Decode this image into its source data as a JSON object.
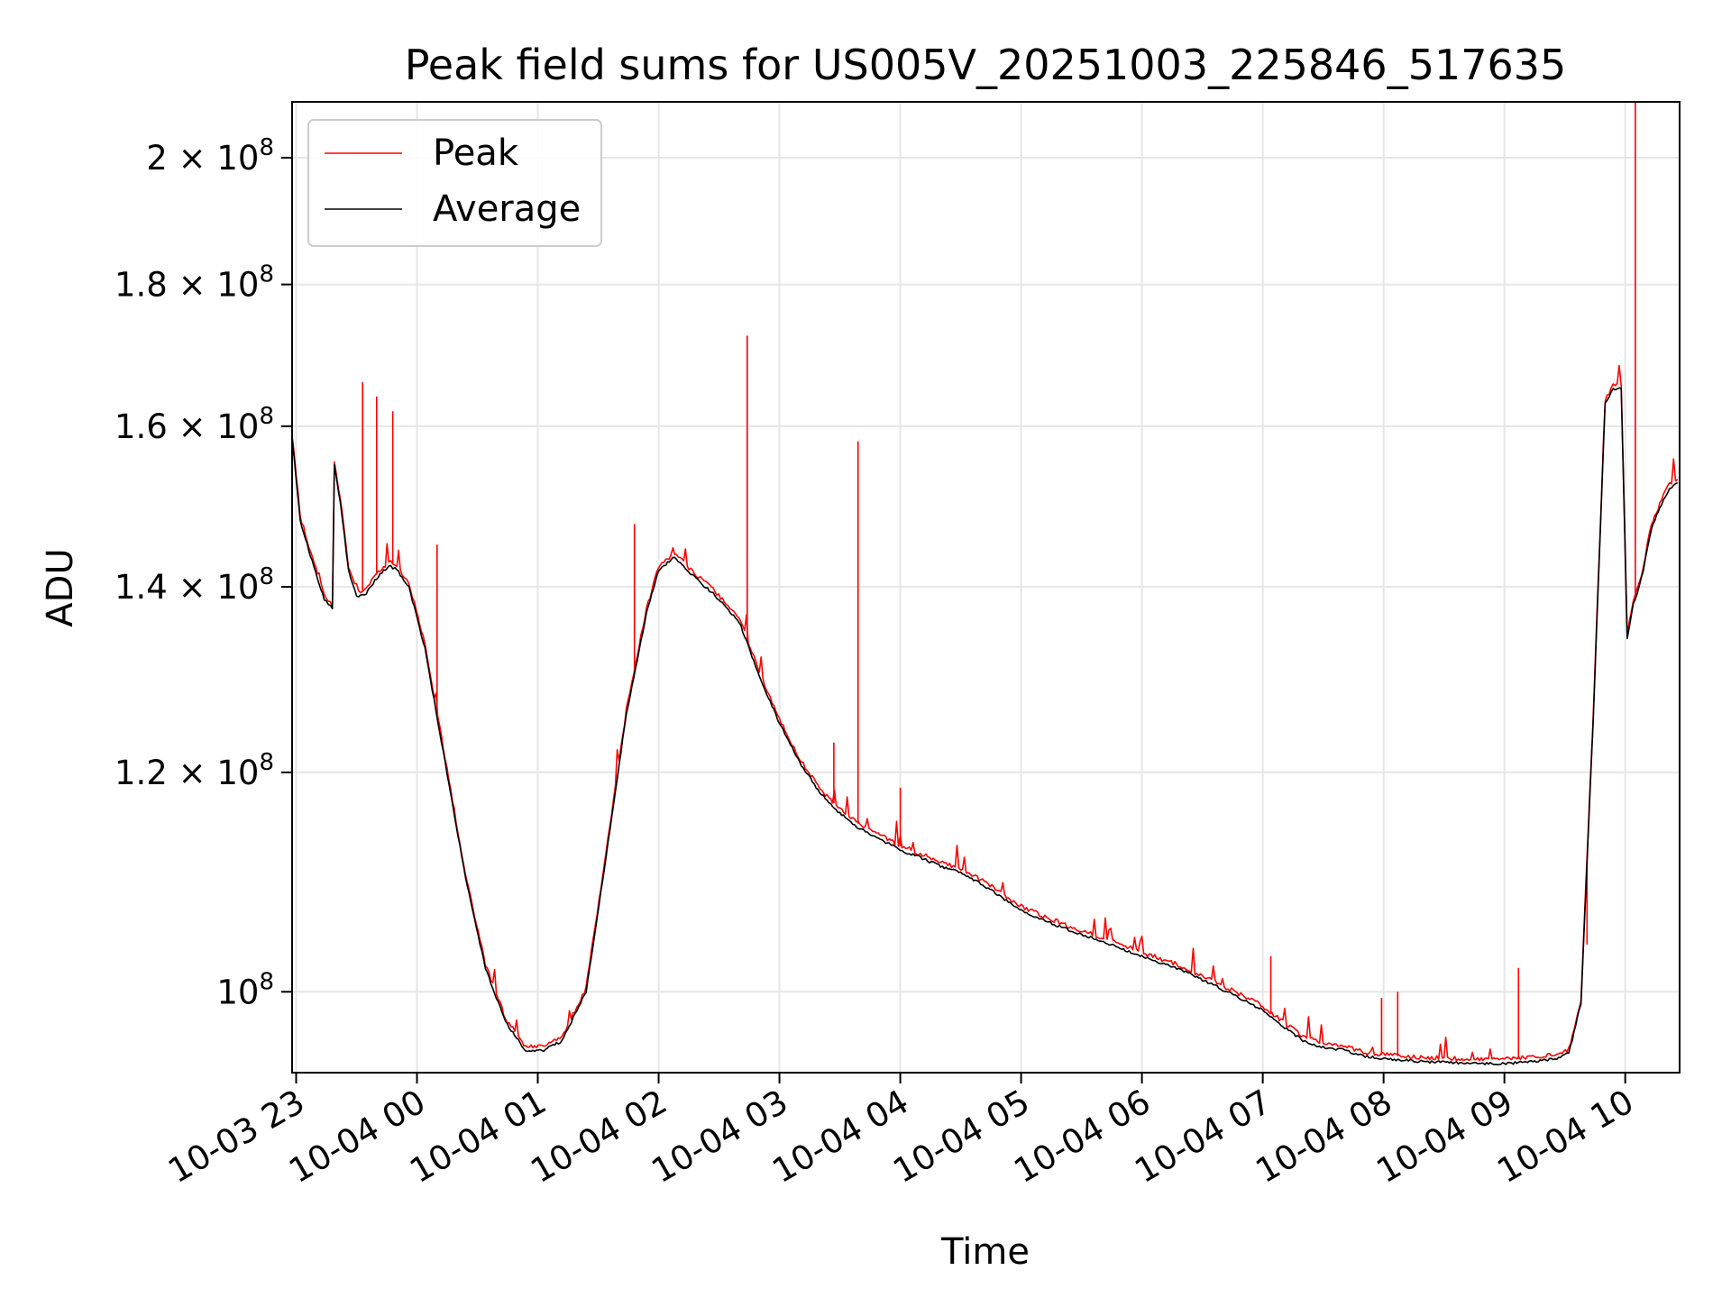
{
  "chart_data": {
    "type": "line",
    "title": "Peak field sums for US005V_20251003_225846_517635",
    "xlabel": "Time",
    "ylabel": "ADU",
    "yscale": "log",
    "ylim": [
      93500000,
      209500000
    ],
    "xlim": [
      "2025-10-03 22:58",
      "2025-10-04 10:27"
    ],
    "grid": true,
    "legend_placement": "top-left",
    "x_ticks": [
      {
        "value": "2025-10-03 23:00",
        "label": "10-03 23"
      },
      {
        "value": "2025-10-04 00:00",
        "label": "10-04 00"
      },
      {
        "value": "2025-10-04 01:00",
        "label": "10-04 01"
      },
      {
        "value": "2025-10-04 02:00",
        "label": "10-04 02"
      },
      {
        "value": "2025-10-04 03:00",
        "label": "10-04 03"
      },
      {
        "value": "2025-10-04 04:00",
        "label": "10-04 04"
      },
      {
        "value": "2025-10-04 05:00",
        "label": "10-04 05"
      },
      {
        "value": "2025-10-04 06:00",
        "label": "10-04 06"
      },
      {
        "value": "2025-10-04 07:00",
        "label": "10-04 07"
      },
      {
        "value": "2025-10-04 08:00",
        "label": "10-04 08"
      },
      {
        "value": "2025-10-04 09:00",
        "label": "10-04 09"
      },
      {
        "value": "2025-10-04 10:00",
        "label": "10-04 10"
      }
    ],
    "y_ticks": [
      {
        "value": 100000000,
        "mantissa": "",
        "exponent": "8"
      },
      {
        "value": 120000000,
        "mantissa": "1.2",
        "exponent": "8"
      },
      {
        "value": 140000000,
        "mantissa": "1.4",
        "exponent": "8"
      },
      {
        "value": 160000000,
        "mantissa": "1.6",
        "exponent": "8"
      },
      {
        "value": 180000000,
        "mantissa": "1.8",
        "exponent": "8"
      },
      {
        "value": 200000000,
        "mantissa": "2",
        "exponent": "8"
      }
    ],
    "series": [
      {
        "name": "Average",
        "color": "#000000",
        "x": [
          "2025-10-03 22:58",
          "2025-10-03 23:02",
          "2025-10-03 23:08",
          "2025-10-03 23:14",
          "2025-10-03 23:18",
          "2025-10-03 23:19",
          "2025-10-03 23:22",
          "2025-10-03 23:26",
          "2025-10-03 23:30",
          "2025-10-03 23:34",
          "2025-10-03 23:40",
          "2025-10-03 23:46",
          "2025-10-03 23:50",
          "2025-10-03 23:56",
          "2025-10-04 00:04",
          "2025-10-04 00:14",
          "2025-10-04 00:24",
          "2025-10-04 00:34",
          "2025-10-04 00:44",
          "2025-10-04 00:54",
          "2025-10-04 01:02",
          "2025-10-04 01:12",
          "2025-10-04 01:24",
          "2025-10-04 01:34",
          "2025-10-04 01:44",
          "2025-10-04 01:54",
          "2025-10-04 02:00",
          "2025-10-04 02:08",
          "2025-10-04 02:16",
          "2025-10-04 02:28",
          "2025-10-04 02:40",
          "2025-10-04 02:50",
          "2025-10-04 03:00",
          "2025-10-04 03:10",
          "2025-10-04 03:20",
          "2025-10-04 03:30",
          "2025-10-04 03:40",
          "2025-10-04 03:50",
          "2025-10-04 04:00",
          "2025-10-04 04:10",
          "2025-10-04 04:20",
          "2025-10-04 04:30",
          "2025-10-04 04:40",
          "2025-10-04 04:50",
          "2025-10-04 05:00",
          "2025-10-04 05:20",
          "2025-10-04 05:40",
          "2025-10-04 06:00",
          "2025-10-04 06:20",
          "2025-10-04 06:40",
          "2025-10-04 07:00",
          "2025-10-04 07:10",
          "2025-10-04 07:20",
          "2025-10-04 07:30",
          "2025-10-04 07:40",
          "2025-10-04 07:50",
          "2025-10-04 08:00",
          "2025-10-04 08:15",
          "2025-10-04 08:30",
          "2025-10-04 08:45",
          "2025-10-04 09:00",
          "2025-10-04 09:15",
          "2025-10-04 09:26",
          "2025-10-04 09:32",
          "2025-10-04 09:38",
          "2025-10-04 09:44",
          "2025-10-04 09:50",
          "2025-10-04 09:54",
          "2025-10-04 09:58",
          "2025-10-04 10:01",
          "2025-10-04 10:04",
          "2025-10-04 10:07",
          "2025-10-04 10:09",
          "2025-10-04 10:13",
          "2025-10-04 10:18",
          "2025-10-04 10:22",
          "2025-10-04 10:26"
        ],
        "values": [
          158500000,
          148000000,
          143000000,
          138500000,
          137500000,
          155000000,
          150000000,
          142000000,
          139000000,
          139000000,
          141000000,
          142500000,
          142000000,
          140000000,
          133000000,
          121000000,
          110000000,
          102000000,
          97500000,
          95200000,
          95200000,
          96000000,
          100000000,
          112000000,
          126000000,
          137000000,
          142000000,
          143500000,
          141500000,
          139000000,
          136000000,
          130000000,
          125000000,
          121000000,
          118000000,
          116000000,
          114500000,
          113500000,
          112500000,
          111800000,
          111000000,
          110400000,
          109400000,
          108200000,
          107000000,
          105500000,
          104300000,
          103000000,
          101800000,
          100200000,
          98500000,
          97200000,
          96000000,
          95500000,
          95300000,
          94800000,
          94600000,
          94400000,
          94300000,
          94200000,
          94200000,
          94400000,
          94600000,
          95000000,
          99000000,
          125000000,
          163000000,
          165000000,
          165000000,
          134000000,
          138000000,
          140000000,
          142000000,
          147000000,
          150000000,
          152000000,
          152500000
        ]
      },
      {
        "name": "Peak",
        "color": "#ff0000",
        "spikes": [
          {
            "x": "2025-10-03 23:33",
            "y": 166000000
          },
          {
            "x": "2025-10-03 23:40",
            "y": 164000000
          },
          {
            "x": "2025-10-03 23:48",
            "y": 162000000
          },
          {
            "x": "2025-10-04 00:10",
            "y": 145000000
          },
          {
            "x": "2025-10-04 01:48",
            "y": 147500000
          },
          {
            "x": "2025-10-04 02:44",
            "y": 172500000
          },
          {
            "x": "2025-10-04 03:39",
            "y": 158000000
          },
          {
            "x": "2025-10-04 03:27",
            "y": 123000000
          },
          {
            "x": "2025-10-04 04:00",
            "y": 118500000
          },
          {
            "x": "2025-10-04 07:04",
            "y": 103000000
          },
          {
            "x": "2025-10-04 07:59",
            "y": 99500000
          },
          {
            "x": "2025-10-04 08:07",
            "y": 100000000
          },
          {
            "x": "2025-10-04 09:07",
            "y": 102000000
          },
          {
            "x": "2025-10-04 09:41",
            "y": 104000000
          },
          {
            "x": "2025-10-04 10:05",
            "y": 209500000
          }
        ]
      }
    ]
  }
}
